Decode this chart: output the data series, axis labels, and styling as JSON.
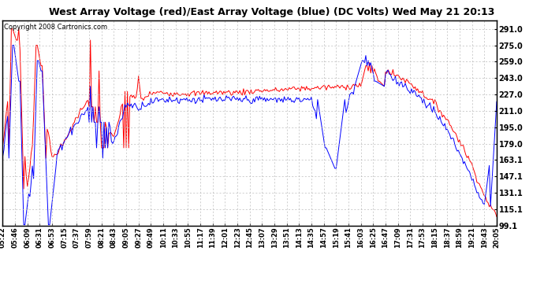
{
  "title": "West Array Voltage (red)/East Array Voltage (blue) (DC Volts) Wed May 21 20:13",
  "copyright": "Copyright 2008 Cartronics.com",
  "ylabel_right_ticks": [
    291.0,
    275.0,
    259.0,
    243.0,
    227.0,
    211.0,
    195.0,
    179.0,
    163.1,
    147.1,
    131.1,
    115.1,
    99.1
  ],
  "ylim": [
    99.1,
    299.0
  ],
  "background_color": "#ffffff",
  "grid_color": "#bbbbbb",
  "red_color": "#ff0000",
  "blue_color": "#0000ff",
  "xtick_labels": [
    "05:22",
    "05:46",
    "06:09",
    "06:31",
    "06:53",
    "07:15",
    "07:37",
    "07:59",
    "08:21",
    "08:43",
    "09:05",
    "09:27",
    "09:49",
    "10:11",
    "10:33",
    "10:55",
    "11:17",
    "11:39",
    "12:01",
    "12:23",
    "12:45",
    "13:07",
    "13:29",
    "13:51",
    "14:13",
    "14:35",
    "14:57",
    "15:19",
    "15:41",
    "16:03",
    "16:25",
    "16:47",
    "17:09",
    "17:31",
    "17:53",
    "18:15",
    "18:37",
    "18:59",
    "19:21",
    "19:43",
    "20:05"
  ],
  "title_fontsize": 9,
  "copyright_fontsize": 6,
  "tick_fontsize": 6,
  "ytick_fontsize": 7
}
